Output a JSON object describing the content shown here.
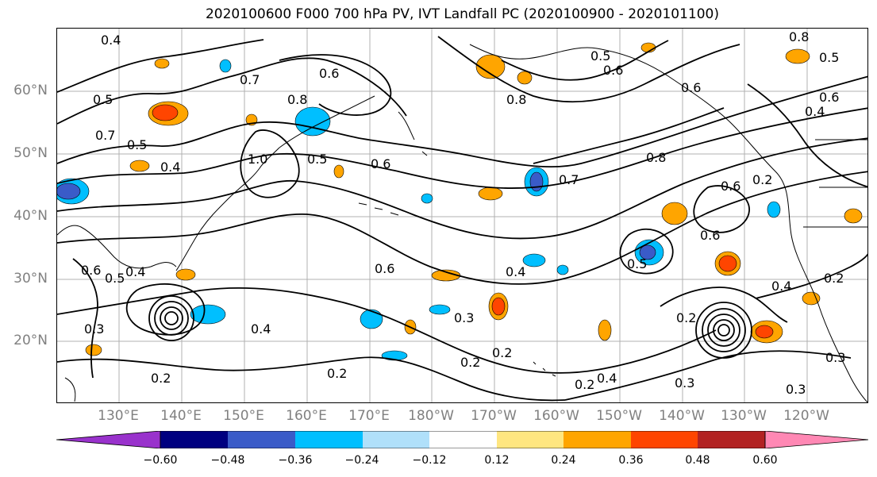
{
  "title": "2020100600 F000 700 hPa PV, IVT Landfall PC (2020100900 - 2020101100)",
  "map": {
    "lat_labels": [
      "60°N",
      "50°N",
      "40°N",
      "30°N",
      "20°N"
    ],
    "lon_labels": [
      "130°E",
      "140°E",
      "150°E",
      "160°E",
      "170°E",
      "180°W",
      "170°W",
      "160°W",
      "150°W",
      "140°W",
      "130°W",
      "120°W"
    ],
    "contour_labels": [
      "0.4",
      "0.5",
      "0.6",
      "0.7",
      "0.8",
      "0.5",
      "0.5",
      "0.7",
      "0.4",
      "0.6",
      "1.0",
      "0.6",
      "0.4",
      "0.7",
      "0.8",
      "0.6",
      "0.5",
      "0.6",
      "0.4",
      "0.6",
      "0.4",
      "0.5",
      "0.3",
      "0.2",
      "0.2",
      "0.4",
      "0.2",
      "0.3",
      "0.2",
      "0.2",
      "0.4",
      "0.3",
      "0.2",
      "0.6",
      "0.5",
      "0.4",
      "0.2",
      "0.3",
      "0.3",
      "0.2",
      "0.5",
      "0.6",
      "0.8",
      "0.6",
      "0.8"
    ],
    "shading_colors": {
      "neg_strong": "#3a5bc8",
      "neg_mid": "#00bfff",
      "neg_weak": "#b4e4fb",
      "pos_weak": "#ffe680",
      "pos_mid": "#ffa500",
      "pos_strong": "#ff4500",
      "pos_max": "#b22222"
    }
  },
  "colorbar": {
    "ticks": [
      "−0.60",
      "−0.48",
      "−0.36",
      "−0.24",
      "−0.12",
      "0.12",
      "0.24",
      "0.36",
      "0.48",
      "0.60"
    ],
    "colors": [
      "#9932cc",
      "#000080",
      "#3a5bc8",
      "#00bfff",
      "#b0e0fa",
      "#ffffff",
      "#ffe680",
      "#ffa500",
      "#ff4500",
      "#b22222",
      "#ff88b4"
    ]
  }
}
